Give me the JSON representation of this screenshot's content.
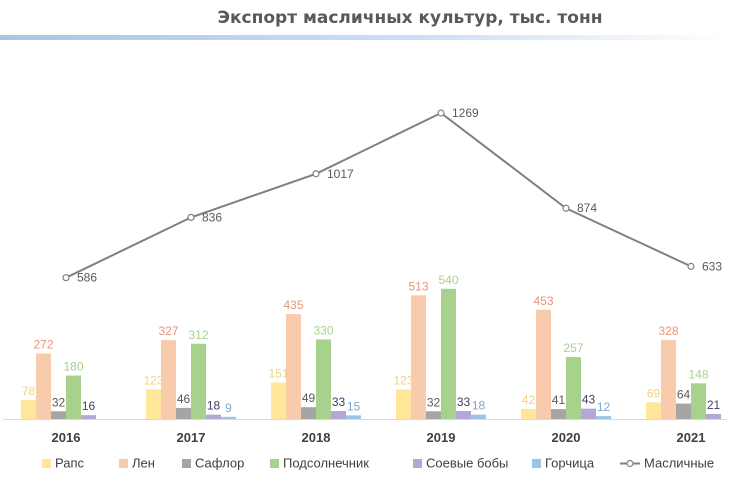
{
  "chart_data": {
    "type": "bar",
    "title": "Экспорт масличных культур, тыс. тонн",
    "categories": [
      "2016",
      "2017",
      "2018",
      "2019",
      "2020",
      "2021"
    ],
    "series": [
      {
        "name": "Рапс",
        "values": [
          78,
          123,
          151,
          123,
          42,
          69
        ],
        "color": "#ffe699",
        "label_color": "#f4d27a"
      },
      {
        "name": "Лен",
        "values": [
          272,
          327,
          435,
          513,
          453,
          328
        ],
        "color": "#f8cbad",
        "label_color": "#e8957a"
      },
      {
        "name": "Сафлор",
        "values": [
          32,
          46,
          49,
          32,
          41,
          64
        ],
        "color": "#a5a5a5",
        "label_color": "#595959"
      },
      {
        "name": "Подсолнечник",
        "values": [
          180,
          312,
          330,
          540,
          257,
          148
        ],
        "color": "#a9d18e",
        "label_color": "#a9d18e"
      },
      {
        "name": "Соевые бобы",
        "values": [
          16,
          18,
          33,
          33,
          43,
          21
        ],
        "color": "#b4a7d6",
        "label_color": "#3f3f6f"
      },
      {
        "name": "Горчица",
        "values": [
          null,
          9,
          15,
          18,
          12,
          null
        ],
        "color": "#9dc3e6",
        "label_color": "#7fa7cf"
      }
    ],
    "line_series": {
      "name": "Масличные",
      "values": [
        586,
        836,
        1017,
        1269,
        874,
        633
      ],
      "color": "#808080",
      "label_color": "#595959"
    },
    "legend": {
      "position": "bottom"
    },
    "grid": false
  }
}
